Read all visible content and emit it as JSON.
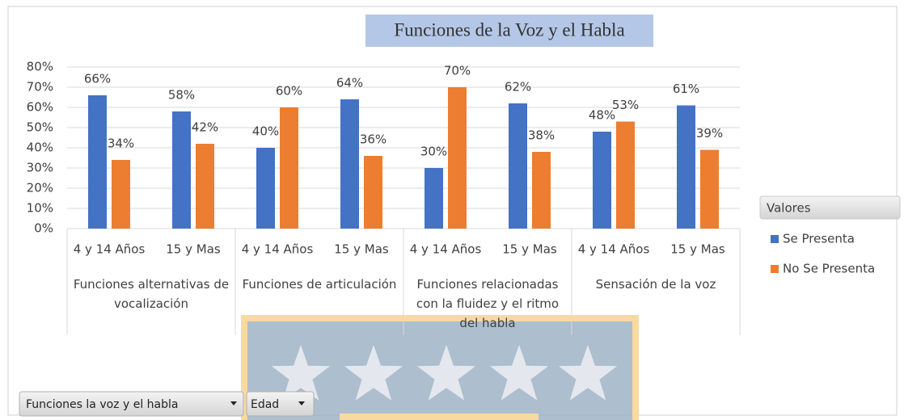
{
  "chart_data": {
    "type": "bar",
    "title": "Funciones de la Voz y el Habla",
    "categories": [
      "4 y 14 Años",
      "15 y Mas",
      "4 y 14 Años",
      "15 y Mas",
      "4 y 14 Años",
      "15 y Mas",
      "4 y 14 Años",
      "15 y Mas"
    ],
    "category_groups": [
      "Funciones alternativas de vocalización",
      "Funciones de articulación",
      "Funciones relacionadas con la fluidez y el ritmo del habla",
      "Sensación de la voz"
    ],
    "series": [
      {
        "name": "Se Presenta",
        "color": "#4472c4",
        "values": [
          66,
          58,
          40,
          64,
          30,
          62,
          48,
          61
        ],
        "value_labels": [
          "66%",
          "58%",
          "40%",
          "64%",
          "30%",
          "62%",
          "48%",
          "61%"
        ]
      },
      {
        "name": "No Se Presenta",
        "color": "#ed7d31",
        "values": [
          34,
          42,
          60,
          36,
          70,
          38,
          53,
          39
        ],
        "value_labels": [
          "34%",
          "42%",
          "60%",
          "36%",
          "70%",
          "38%",
          "53%",
          "39%"
        ]
      }
    ],
    "ylim": [
      0,
      80
    ],
    "yticks": [
      {
        "value": 0,
        "label": "0%"
      },
      {
        "value": 10,
        "label": "10%"
      },
      {
        "value": 20,
        "label": "20%"
      },
      {
        "value": 30,
        "label": "30%"
      },
      {
        "value": 40,
        "label": "40%"
      },
      {
        "value": 50,
        "label": "50%"
      },
      {
        "value": 60,
        "label": "60%"
      },
      {
        "value": 70,
        "label": "70%"
      },
      {
        "value": 80,
        "label": "80%"
      }
    ],
    "grid": true,
    "legend_title": "Valores",
    "legend": "right",
    "filters": [
      "Funciones la voz y el habla",
      "Edad"
    ]
  }
}
